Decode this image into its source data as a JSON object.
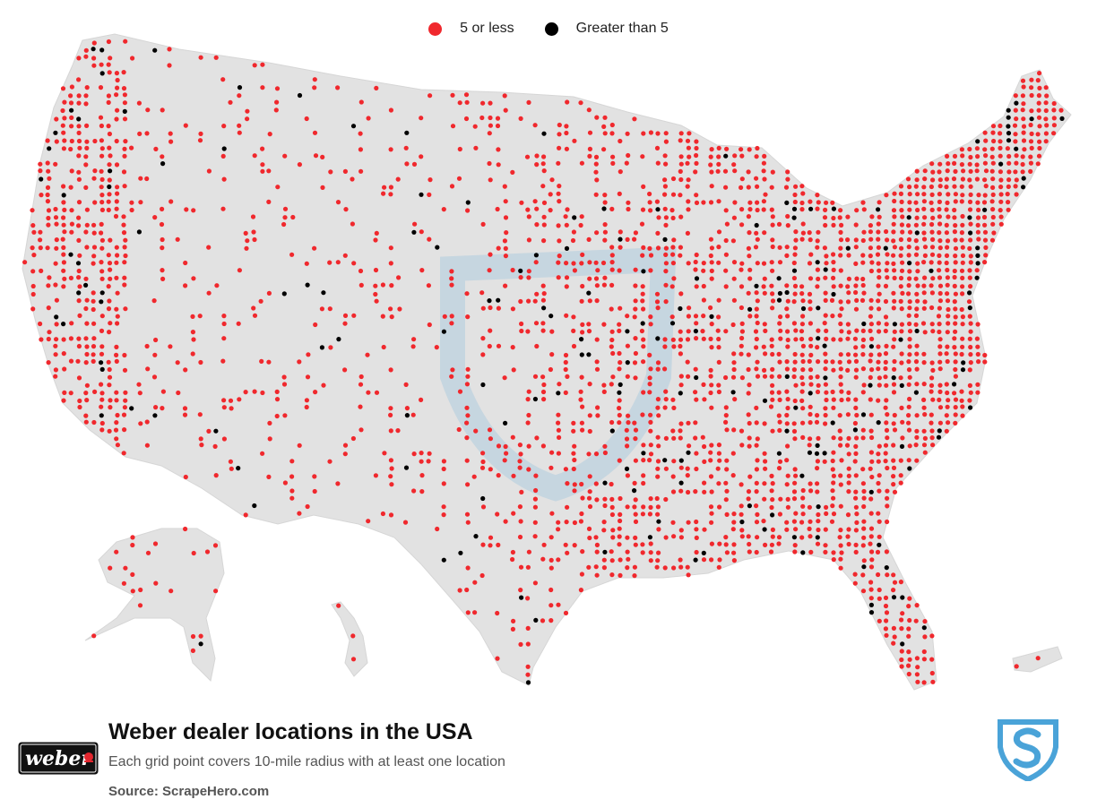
{
  "legend": {
    "items": [
      {
        "label": "5 or less",
        "color": "#f0282d"
      },
      {
        "label": "Greater than 5",
        "color": "#000000"
      }
    ]
  },
  "map": {
    "region": "USA",
    "land_color": "#e2e2e2",
    "border_color": "#ffffff",
    "dot_radius_px": 2.6
  },
  "footer": {
    "title": "Weber dealer locations in the USA",
    "subtitle": "Each grid point covers 10-mile radius with at least one location",
    "source": "Source: ScrapeHero.com",
    "logo_text": "weber",
    "brand_icon": "scrapehero-shield-icon"
  },
  "colors": {
    "low": "#f0282d",
    "high": "#000000",
    "shield": "#4aa3d8"
  }
}
